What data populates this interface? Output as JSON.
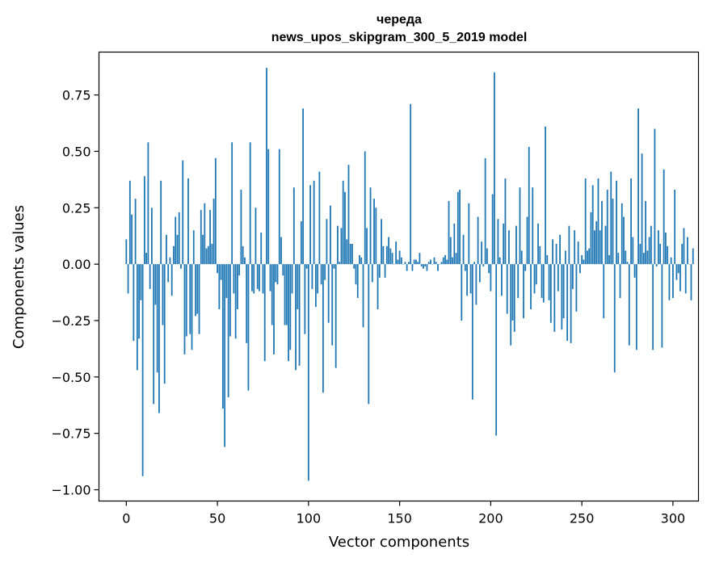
{
  "chart_data": {
    "type": "bar",
    "title": "череда",
    "subtitle": "news_upos_skipgram_300_5_2019 model",
    "xlabel": "Vector components",
    "ylabel": "Components values",
    "xlim": [
      -15,
      314
    ],
    "ylim": [
      -1.05,
      0.94
    ],
    "xticks": [
      0,
      50,
      100,
      150,
      200,
      250,
      300
    ],
    "xtick_labels": [
      "0",
      "50",
      "100",
      "150",
      "200",
      "250",
      "300"
    ],
    "yticks": [
      -1.0,
      -0.75,
      -0.5,
      -0.25,
      0.0,
      0.25,
      0.5,
      0.75
    ],
    "ytick_labels": [
      "−1.00",
      "−0.75",
      "−0.50",
      "−0.25",
      "0.00",
      "0.25",
      "0.50",
      "0.75"
    ],
    "grid": false,
    "color": "#1f77b4",
    "values": [
      0.11,
      -0.13,
      0.37,
      0.22,
      -0.34,
      0.29,
      -0.47,
      -0.33,
      -0.16,
      -0.94,
      0.39,
      0.05,
      0.54,
      -0.11,
      0.25,
      -0.62,
      -0.18,
      -0.48,
      -0.66,
      0.37,
      -0.27,
      -0.53,
      0.13,
      -0.08,
      0.03,
      -0.14,
      0.08,
      0.21,
      0.13,
      0.23,
      -0.02,
      0.46,
      -0.4,
      -0.32,
      0.38,
      -0.31,
      -0.38,
      0.15,
      -0.23,
      -0.22,
      -0.31,
      0.24,
      0.13,
      0.27,
      0.07,
      0.08,
      0.24,
      0.09,
      0.29,
      0.47,
      -0.04,
      -0.2,
      -0.07,
      -0.64,
      -0.81,
      -0.15,
      -0.59,
      -0.32,
      0.54,
      -0.13,
      -0.33,
      -0.2,
      -0.05,
      0.33,
      0.08,
      0.03,
      -0.35,
      -0.56,
      0.54,
      -0.12,
      -0.13,
      0.25,
      -0.11,
      -0.12,
      0.14,
      -0.13,
      -0.43,
      0.87,
      0.51,
      -0.12,
      -0.27,
      -0.4,
      -0.08,
      -0.09,
      0.51,
      0.12,
      -0.05,
      -0.27,
      -0.27,
      -0.43,
      -0.38,
      -0.13,
      0.34,
      -0.47,
      -0.2,
      -0.45,
      0.19,
      0.69,
      -0.31,
      -0.02,
      -0.96,
      0.35,
      -0.11,
      0.37,
      -0.19,
      -0.13,
      0.41,
      -0.09,
      -0.57,
      -0.07,
      0.2,
      -0.26,
      0.26,
      -0.36,
      -0.02,
      -0.46,
      0.17,
      0.01,
      0.16,
      0.37,
      0.32,
      0.11,
      0.44,
      0.09,
      0.09,
      -0.02,
      -0.09,
      -0.15,
      0.04,
      0.03,
      -0.28,
      0.5,
      0.16,
      -0.62,
      0.34,
      -0.08,
      0.29,
      0.25,
      -0.2,
      -0.06,
      0.2,
      0.08,
      -0.06,
      0.08,
      0.12,
      0.07,
      0.05,
      0.0,
      0.1,
      0.02,
      0.06,
      0.03,
      0.0,
      0.01,
      -0.03,
      0.01,
      0.71,
      -0.03,
      0.02,
      0.02,
      0.01,
      0.05,
      -0.01,
      -0.02,
      -0.01,
      -0.03,
      0.01,
      0.02,
      0.0,
      0.03,
      0.01,
      -0.03,
      0.0,
      0.01,
      0.03,
      0.04,
      0.02,
      0.28,
      0.12,
      0.03,
      0.18,
      0.05,
      0.32,
      0.33,
      -0.25,
      0.13,
      -0.03,
      -0.14,
      0.27,
      -0.13,
      -0.6,
      0.01,
      -0.18,
      0.21,
      -0.08,
      0.1,
      -0.01,
      0.47,
      0.07,
      -0.04,
      -0.12,
      0.31,
      0.85,
      -0.76,
      0.2,
      0.03,
      -0.14,
      0.18,
      0.38,
      -0.22,
      0.15,
      -0.36,
      -0.25,
      -0.3,
      0.17,
      -0.15,
      0.34,
      0.06,
      -0.24,
      -0.03,
      0.21,
      0.52,
      -0.2,
      0.34,
      -0.13,
      -0.09,
      0.18,
      0.08,
      -0.15,
      -0.17,
      0.61,
      0.04,
      -0.16,
      -0.26,
      0.11,
      -0.3,
      0.09,
      -0.12,
      0.13,
      -0.29,
      -0.24,
      0.06,
      -0.34,
      0.17,
      -0.35,
      -0.11,
      0.15,
      -0.21,
      0.1,
      -0.04,
      0.04,
      0.02,
      0.38,
      0.06,
      0.07,
      0.23,
      0.35,
      0.15,
      0.19,
      0.38,
      0.15,
      0.28,
      -0.24,
      0.17,
      0.33,
      0.04,
      0.41,
      0.29,
      -0.48,
      0.37,
      0.05,
      -0.15,
      0.27,
      0.21,
      0.06,
      0.01,
      -0.36,
      0.38,
      0.12,
      -0.06,
      -0.38,
      0.69,
      0.09,
      0.49,
      0.05,
      0.28,
      0.06,
      0.12,
      0.17,
      -0.38,
      0.6,
      -0.01,
      0.15,
      0.09,
      -0.37,
      0.42,
      0.14,
      0.08,
      -0.16,
      0.03,
      -0.15,
      0.33,
      -0.07,
      -0.04,
      -0.12,
      0.09,
      0.16,
      -0.13,
      0.12,
      0.0,
      -0.16,
      0.07
    ]
  }
}
